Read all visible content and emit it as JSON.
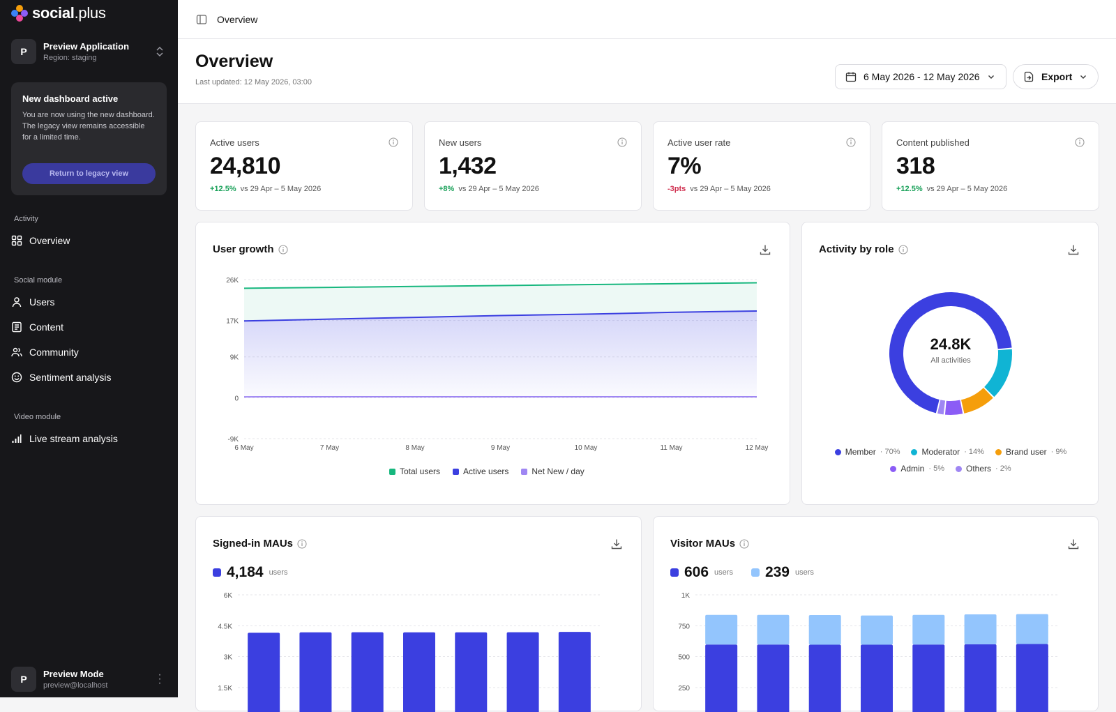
{
  "brand": {
    "name_bold": "social",
    "name_rest": ".plus"
  },
  "app": {
    "avatar": "P",
    "name": "Preview Application",
    "region": "Region: staging"
  },
  "notice": {
    "title": "New dashboard active",
    "body": "You are now using the new dashboard. The legacy view remains accessible for a limited time.",
    "button": "Return to legacy view"
  },
  "nav": {
    "activity_label": "Activity",
    "overview": "Overview",
    "social_label": "Social module",
    "users": "Users",
    "content": "Content",
    "community": "Community",
    "sentiment": "Sentiment analysis",
    "video_label": "Video module",
    "livestream": "Live stream analysis"
  },
  "footer_user": {
    "avatar": "P",
    "name": "Preview Mode",
    "email": "preview@localhost"
  },
  "topbar": {
    "crumb": "Overview"
  },
  "header": {
    "title": "Overview",
    "updated": "Last updated: 12 May 2026, 03:00",
    "date_range": "6 May 2026 - 12 May 2026",
    "export": "Export"
  },
  "kpis": [
    {
      "label": "Active users",
      "value": "24,810",
      "delta": "+12.5%",
      "trend": "up",
      "compare": "vs 29 Apr – 5 May 2026"
    },
    {
      "label": "New users",
      "value": "1,432",
      "delta": "+8%",
      "trend": "up",
      "compare": "vs 29 Apr – 5 May 2026"
    },
    {
      "label": "Active user rate",
      "value": "7%",
      "delta": "-3pts",
      "trend": "down",
      "compare": "vs 29 Apr – 5 May 2026"
    },
    {
      "label": "Content published",
      "value": "318",
      "delta": "+12.5%",
      "trend": "up",
      "compare": "vs 29 Apr – 5 May 2026"
    }
  ],
  "colors": {
    "green": "#17b77e",
    "blue": "#3b3fe0",
    "purple": "#9f86f3",
    "cyan": "#10b4d4",
    "orange": "#f59e0b",
    "violet": "#8b5cf6",
    "lightblue": "#93c5fd"
  },
  "chart_data": [
    {
      "type": "area",
      "title": "User growth",
      "x": [
        "6 May",
        "7 May",
        "8 May",
        "9 May",
        "10 May",
        "11 May",
        "12 May"
      ],
      "ylim": [
        -9000,
        26000
      ],
      "yticks": [
        "26K",
        "17K",
        "9K",
        "0",
        "-9K"
      ],
      "ytick_values": [
        26000,
        17000,
        9000,
        0,
        -9000
      ],
      "series": [
        {
          "name": "Total users",
          "values": [
            24100,
            24300,
            24500,
            24700,
            24900,
            25100,
            25300
          ]
        },
        {
          "name": "Active users",
          "values": [
            16900,
            17300,
            17700,
            18100,
            18400,
            18800,
            19100
          ]
        },
        {
          "name": "Net New / day",
          "values": [
            200,
            210,
            205,
            215,
            220,
            210,
            215
          ]
        }
      ],
      "legend": "bottom"
    },
    {
      "type": "pie",
      "title": "Activity by role",
      "center_value": "24.8K",
      "center_label": "All activities",
      "series": [
        {
          "name": "Member",
          "value": 70,
          "label": "70%"
        },
        {
          "name": "Moderator",
          "value": 14,
          "label": "14%"
        },
        {
          "name": "Brand user",
          "value": 9,
          "label": "9%"
        },
        {
          "name": "Admin",
          "value": 5,
          "label": "5%"
        },
        {
          "name": "Others",
          "value": 2,
          "label": "2%"
        }
      ],
      "legend": "bottom"
    },
    {
      "type": "bar",
      "title": "Signed-in MAUs",
      "total": "4,184",
      "unit": "users",
      "ylim": [
        0,
        6000
      ],
      "yticks": [
        "6K",
        "4.5K",
        "3K",
        "1.5K"
      ],
      "ytick_values": [
        6000,
        4500,
        3000,
        1500
      ],
      "series": [
        {
          "name": "Signed-in",
          "values": [
            4160,
            4180,
            4185,
            4180,
            4180,
            4185,
            4200
          ]
        }
      ]
    },
    {
      "type": "bar",
      "title": "Visitor MAUs",
      "totals": [
        {
          "value": "606",
          "unit": "users"
        },
        {
          "value": "239",
          "unit": "users"
        }
      ],
      "ylim": [
        0,
        1000
      ],
      "yticks": [
        "1K",
        "750",
        "500",
        "250"
      ],
      "ytick_values": [
        1000,
        750,
        500,
        250
      ],
      "stacked": true,
      "series": [
        {
          "name": "606",
          "values": [
            598,
            598,
            596,
            596,
            598,
            600,
            602
          ]
        },
        {
          "name": "239",
          "values": [
            240,
            240,
            240,
            237,
            240,
            242,
            242
          ]
        }
      ]
    }
  ]
}
